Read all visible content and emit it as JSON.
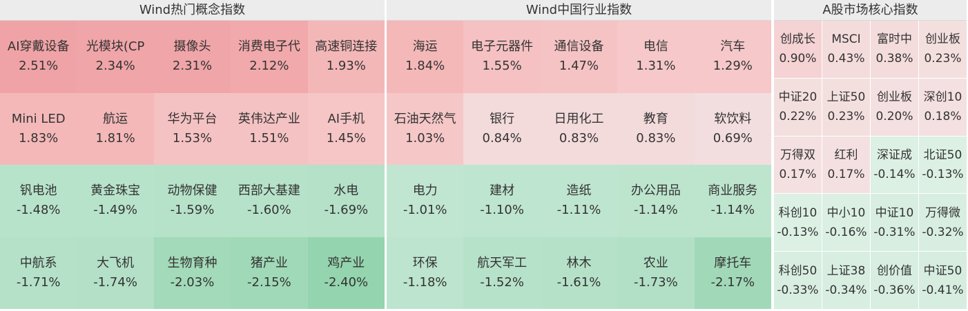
{
  "panels": [
    {
      "title": "Wind热门概念指数",
      "cells": [
        {
          "name": "AI穿戴设备",
          "change": "2.51%",
          "color": "#f0a3a6"
        },
        {
          "name": "光模块(CP",
          "change": "2.34%",
          "color": "#f0a5a8"
        },
        {
          "name": "摄像头",
          "change": "2.31%",
          "color": "#f0a5a8"
        },
        {
          "name": "消费电子代",
          "change": "2.12%",
          "color": "#f1a9ab"
        },
        {
          "name": "高速铜连接",
          "change": "1.93%",
          "color": "#f4b7b8"
        },
        {
          "name": "Mini LED",
          "change": "1.83%",
          "color": "#f4b8b9"
        },
        {
          "name": "航运",
          "change": "1.81%",
          "color": "#f4b8b9"
        },
        {
          "name": "华为平台",
          "change": "1.53%",
          "color": "#f5c2c3"
        },
        {
          "name": "英伟达产业",
          "change": "1.51%",
          "color": "#f5c2c3"
        },
        {
          "name": "AI手机",
          "change": "1.45%",
          "color": "#f6c5c5"
        },
        {
          "name": "钒电池",
          "change": "-1.48%",
          "color": "#b8e3cb"
        },
        {
          "name": "黄金珠宝",
          "change": "-1.49%",
          "color": "#b8e3cb"
        },
        {
          "name": "动物保健",
          "change": "-1.59%",
          "color": "#b6e2c9"
        },
        {
          "name": "西部大基建",
          "change": "-1.60%",
          "color": "#b6e2c9"
        },
        {
          "name": "水电",
          "change": "-1.69%",
          "color": "#b4e1c8"
        },
        {
          "name": "中航系",
          "change": "-1.71%",
          "color": "#b4e1c8"
        },
        {
          "name": "大飞机",
          "change": "-1.74%",
          "color": "#b3e0c7"
        },
        {
          "name": "生物育种",
          "change": "-2.03%",
          "color": "#a3dab9"
        },
        {
          "name": "猪产业",
          "change": "-2.15%",
          "color": "#a0d9b7"
        },
        {
          "name": "鸡产业",
          "change": "-2.40%",
          "color": "#94d4ae"
        }
      ]
    },
    {
      "title": "Wind中国行业指数",
      "cells": [
        {
          "name": "海运",
          "change": "1.84%",
          "color": "#f4b8b9"
        },
        {
          "name": "电子元器件",
          "change": "1.55%",
          "color": "#f5c1c2"
        },
        {
          "name": "通信设备",
          "change": "1.47%",
          "color": "#f5c3c4"
        },
        {
          "name": "电信",
          "change": "1.31%",
          "color": "#f6c8c9"
        },
        {
          "name": "汽车",
          "change": "1.29%",
          "color": "#f6c8c9"
        },
        {
          "name": "石油天然气",
          "change": "1.03%",
          "color": "#f6c7c7"
        },
        {
          "name": "银行",
          "change": "0.84%",
          "color": "#f3dadb"
        },
        {
          "name": "日用化工",
          "change": "0.83%",
          "color": "#f3dadb"
        },
        {
          "name": "教育",
          "change": "0.83%",
          "color": "#f3dadb"
        },
        {
          "name": "软饮料",
          "change": "0.69%",
          "color": "#f3dedf"
        },
        {
          "name": "电力",
          "change": "-1.01%",
          "color": "#c0e6d1"
        },
        {
          "name": "建材",
          "change": "-1.10%",
          "color": "#bee5cf"
        },
        {
          "name": "造纸",
          "change": "-1.11%",
          "color": "#bee5cf"
        },
        {
          "name": "办公用品",
          "change": "-1.14%",
          "color": "#bde5ce"
        },
        {
          "name": "商业服务",
          "change": "-1.14%",
          "color": "#bde5ce"
        },
        {
          "name": "环保",
          "change": "-1.18%",
          "color": "#bce4ce"
        },
        {
          "name": "航天军工",
          "change": "-1.52%",
          "color": "#b7e2ca"
        },
        {
          "name": "林木",
          "change": "-1.61%",
          "color": "#b5e1c8"
        },
        {
          "name": "农业",
          "change": "-1.73%",
          "color": "#b2e0c6"
        },
        {
          "name": "摩托车",
          "change": "-2.17%",
          "color": "#a1d9b8"
        }
      ]
    },
    {
      "title": "A股市场核心指数",
      "cells": [
        {
          "name": "创成长",
          "change": "0.90%",
          "color": "#f5d2d3"
        },
        {
          "name": "MSCI",
          "change": "0.43%",
          "color": "#f4dcdc"
        },
        {
          "name": "富时中",
          "change": "0.38%",
          "color": "#f4dcdc"
        },
        {
          "name": "创业板",
          "change": "0.23%",
          "color": "#f4dfdf"
        },
        {
          "name": "中证20",
          "change": "0.22%",
          "color": "#f4dfdf"
        },
        {
          "name": "上证50",
          "change": "0.23%",
          "color": "#f4dfdf"
        },
        {
          "name": "创业板",
          "change": "0.20%",
          "color": "#f4e0e0"
        },
        {
          "name": "深创10",
          "change": "0.18%",
          "color": "#f4e0e0"
        },
        {
          "name": "万得双",
          "change": "0.17%",
          "color": "#f4e0e0"
        },
        {
          "name": "红利",
          "change": "0.17%",
          "color": "#f4e0e0"
        },
        {
          "name": "深证成",
          "change": "-0.14%",
          "color": "#dcf0e4"
        },
        {
          "name": "北证50",
          "change": "-0.13%",
          "color": "#dcf0e4"
        },
        {
          "name": "科创10",
          "change": "-0.13%",
          "color": "#dcf0e4"
        },
        {
          "name": "中小10",
          "change": "-0.16%",
          "color": "#dbf0e3"
        },
        {
          "name": "中证10",
          "change": "-0.31%",
          "color": "#d8eee1"
        },
        {
          "name": "万得微",
          "change": "-0.32%",
          "color": "#d8eee1"
        },
        {
          "name": "科创50",
          "change": "-0.33%",
          "color": "#d8eee1"
        },
        {
          "name": "上证38",
          "change": "-0.34%",
          "color": "#d8eee1"
        },
        {
          "name": "创价值",
          "change": "-0.36%",
          "color": "#d7eee0"
        },
        {
          "name": "中证50",
          "change": "-0.41%",
          "color": "#d6ede0"
        }
      ]
    }
  ]
}
